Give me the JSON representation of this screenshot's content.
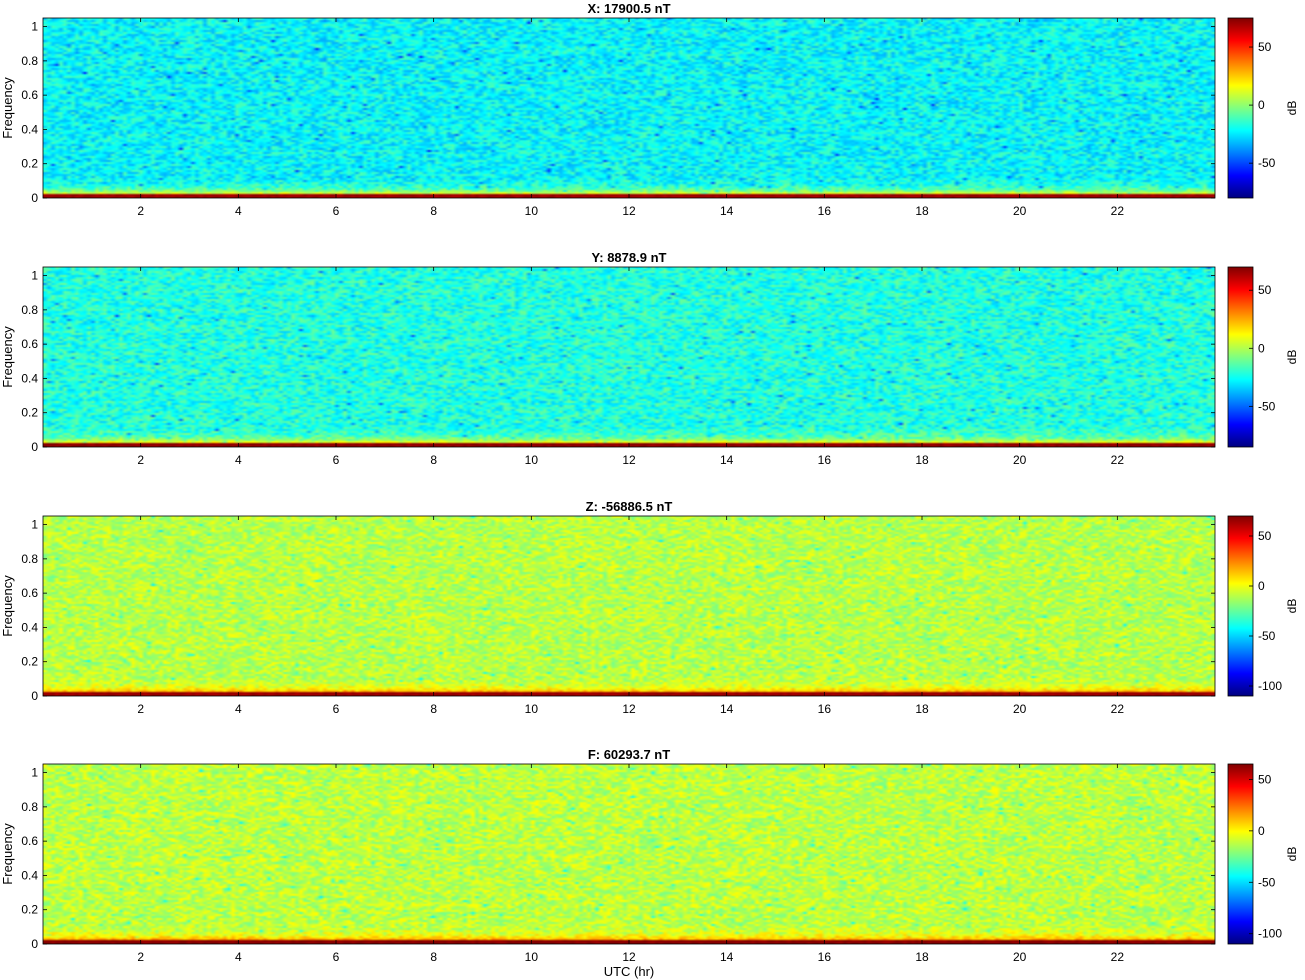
{
  "figure": {
    "xlabel": "UTC (hr)"
  },
  "chart_data": [
    {
      "type": "heatmap",
      "title": "X: 17900.5 nT",
      "xlabel": "",
      "ylabel": "Frequency",
      "colorbar_label": "dB",
      "xlim": [
        0,
        24
      ],
      "ylim": [
        0,
        1.05
      ],
      "xticks": [
        "2",
        "4",
        "6",
        "8",
        "10",
        "12",
        "14",
        "16",
        "18",
        "20",
        "22"
      ],
      "yticks": [
        "0",
        "0.2",
        "0.4",
        "0.6",
        "0.8",
        "1"
      ],
      "clim": [
        -80,
        75
      ],
      "cticks": [
        "-50",
        "0",
        "50"
      ],
      "background_db": -22,
      "low_freq_db": 55
    },
    {
      "type": "heatmap",
      "title": "Y: 8878.9 nT",
      "xlabel": "",
      "ylabel": "Frequency",
      "colorbar_label": "dB",
      "xlim": [
        0,
        24
      ],
      "ylim": [
        0,
        1.05
      ],
      "xticks": [
        "2",
        "4",
        "6",
        "8",
        "10",
        "12",
        "14",
        "16",
        "18",
        "20",
        "22"
      ],
      "yticks": [
        "0",
        "0.2",
        "0.4",
        "0.6",
        "0.8",
        "1"
      ],
      "clim": [
        -85,
        70
      ],
      "cticks": [
        "-50",
        "0",
        "50"
      ],
      "background_db": -22,
      "low_freq_db": 52
    },
    {
      "type": "heatmap",
      "title": "Z: -56886.5 nT",
      "xlabel": "",
      "ylabel": "Frequency",
      "colorbar_label": "dB",
      "xlim": [
        0,
        24
      ],
      "ylim": [
        0,
        1.05
      ],
      "xticks": [
        "2",
        "4",
        "6",
        "8",
        "10",
        "12",
        "14",
        "16",
        "18",
        "20",
        "22"
      ],
      "yticks": [
        "0",
        "0.2",
        "0.4",
        "0.6",
        "0.8",
        "1"
      ],
      "clim": [
        -110,
        70
      ],
      "cticks": [
        "-100",
        "-50",
        "0",
        "50"
      ],
      "background_db": -10,
      "low_freq_db": 50
    },
    {
      "type": "heatmap",
      "title": "F: 60293.7 nT",
      "xlabel": "UTC (hr)",
      "ylabel": "Frequency",
      "colorbar_label": "dB",
      "xlim": [
        0,
        24
      ],
      "ylim": [
        0,
        1.05
      ],
      "xticks": [
        "2",
        "4",
        "6",
        "8",
        "10",
        "12",
        "14",
        "16",
        "18",
        "20",
        "22"
      ],
      "yticks": [
        "0",
        "0.2",
        "0.4",
        "0.6",
        "0.8",
        "1"
      ],
      "clim": [
        -110,
        65
      ],
      "cticks": [
        "-100",
        "-50",
        "0",
        "50"
      ],
      "background_db": -12,
      "low_freq_db": 48
    }
  ]
}
